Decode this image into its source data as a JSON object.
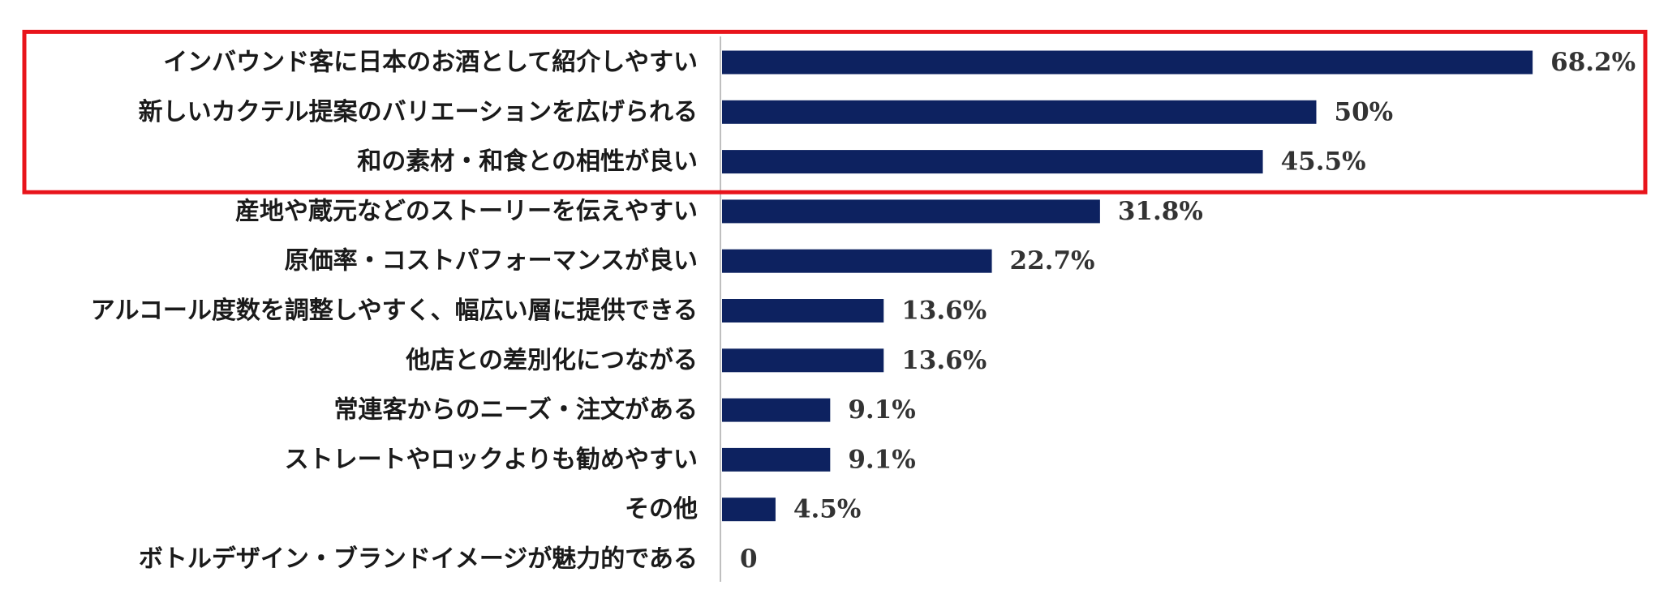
{
  "chart_data": {
    "type": "bar",
    "orientation": "horizontal",
    "title": "",
    "xlabel": "",
    "ylabel": "",
    "xlim": [
      0,
      100
    ],
    "grid": false,
    "legend": "none",
    "bar_color": "#0d2260",
    "highlight_color": "#e8141b",
    "highlighted_categories": [
      "インバウンド客に日本のお酒として紹介しやすい",
      "新しいカクテル提案のバリエーションを広げられる",
      "和の素材・和食との相性が良い"
    ],
    "categories": [
      "インバウンド客に日本のお酒として紹介しやすい",
      "新しいカクテル提案のバリエーションを広げられる",
      "和の素材・和食との相性が良い",
      "産地や蔵元などのストーリーを伝えやすい",
      "原価率・コストパフォーマンスが良い",
      "アルコール度数を調整しやすく、幅広い層に提供できる",
      "他店との差別化につながる",
      "常連客からのニーズ・注文がある",
      "ストレートやロックよりも勧めやすい",
      "その他",
      "ボトルデザイン・ブランドイメージが魅力的である"
    ],
    "values": [
      68.2,
      50,
      45.5,
      31.8,
      22.7,
      13.6,
      13.6,
      9.1,
      9.1,
      4.5,
      0
    ],
    "value_labels": [
      "68.2%",
      "50%",
      "45.5%",
      "31.8%",
      "22.7%",
      "13.6%",
      "13.6%",
      "9.1%",
      "9.1%",
      "4.5%",
      "0"
    ]
  }
}
